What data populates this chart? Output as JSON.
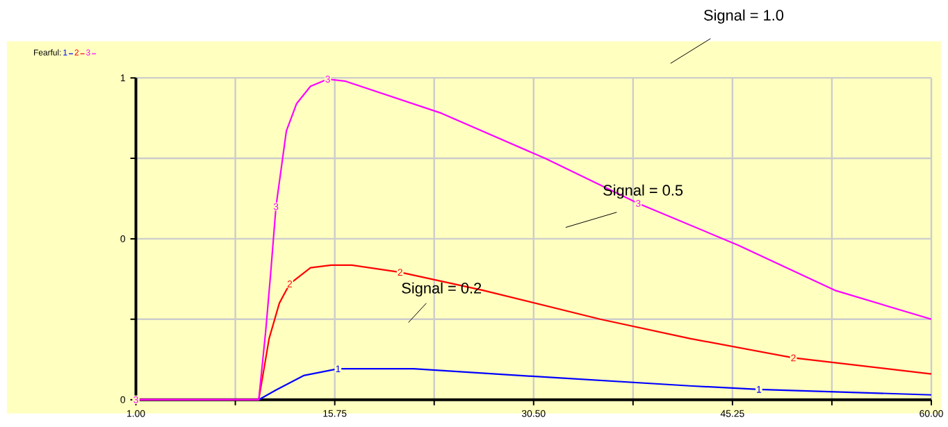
{
  "chart_data": {
    "type": "line",
    "legend_title": "Fearful:",
    "legend": "top left",
    "grid": true,
    "annotations": [
      "Signal = 1.0",
      "Signal = 0.5",
      "Signal = 0.2"
    ],
    "xlim": [
      1,
      60
    ],
    "ylim": [
      0,
      1
    ],
    "xticks": [
      {
        "value": 1,
        "label": "1.00"
      },
      {
        "value": 8.375,
        "label": null
      },
      {
        "value": 15.75,
        "label": "15.75"
      },
      {
        "value": 23.125,
        "label": null
      },
      {
        "value": 30.5,
        "label": "30.50"
      },
      {
        "value": 37.875,
        "label": null
      },
      {
        "value": 45.25,
        "label": "45.25"
      },
      {
        "value": 52.625,
        "label": null
      },
      {
        "value": 60,
        "label": "60.00"
      }
    ],
    "yticks": [
      0,
      {
        "value": 0.25,
        "label": null
      },
      {
        "value": 0.5,
        "label": "0"
      },
      {
        "value": 0.75,
        "label": null
      },
      1
    ],
    "series": [
      {
        "name": "1",
        "color": "#0000ff",
        "x": [
          1,
          10.11,
          11.39,
          13.44,
          15.99,
          21.62,
          31.86,
          42.1,
          47.21,
          60
        ],
        "values": [
          0,
          0,
          0.03,
          0.075,
          0.096,
          0.096,
          0.069,
          0.043,
          0.032,
          0.015
        ]
      },
      {
        "name": "2",
        "color": "#ff0000",
        "x": [
          1,
          10.11,
          10.88,
          11.64,
          12.41,
          13.95,
          15.48,
          17.02,
          20.6,
          26.74,
          35.44,
          42.1,
          49.77,
          60
        ],
        "values": [
          0,
          0,
          0.19,
          0.3,
          0.36,
          0.41,
          0.418,
          0.418,
          0.396,
          0.34,
          0.25,
          0.19,
          0.13,
          0.08
        ]
      },
      {
        "name": "3",
        "color": "#ff00ff",
        "x": [
          1,
          10.11,
          10.62,
          10.98,
          11.39,
          12.16,
          12.92,
          13.95,
          15.23,
          16.51,
          23.67,
          31.35,
          38.26,
          45.68,
          52.84,
          60
        ],
        "values": [
          0,
          0,
          0.21,
          0.385,
          0.6,
          0.835,
          0.92,
          0.974,
          0.996,
          0.99,
          0.89,
          0.75,
          0.61,
          0.48,
          0.34,
          0.25
        ]
      }
    ]
  }
}
